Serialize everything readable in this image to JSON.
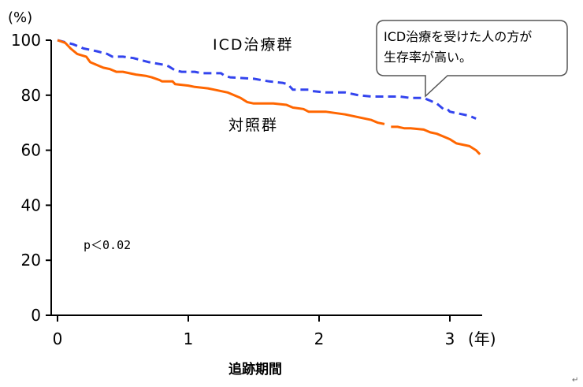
{
  "chart_data": {
    "type": "line",
    "title": "",
    "ylabel_unit": "(%)",
    "xlabel": "追跡期間",
    "x_unit": "(年)",
    "ylim": [
      0,
      100
    ],
    "xlim": [
      0,
      3.2
    ],
    "y_ticks": [
      0,
      20,
      40,
      60,
      80,
      100
    ],
    "x_ticks": [
      0,
      1,
      2,
      3
    ],
    "grid": false,
    "series": [
      {
        "name": "ICD治療群",
        "color": "#3344ee",
        "dash": "dashed",
        "points": [
          [
            0,
            100
          ],
          [
            0.12,
            98.5
          ],
          [
            0.2,
            97
          ],
          [
            0.3,
            96
          ],
          [
            0.38,
            95
          ],
          [
            0.42,
            94
          ],
          [
            0.5,
            94
          ],
          [
            0.58,
            93.5
          ],
          [
            0.62,
            93
          ],
          [
            0.7,
            92
          ],
          [
            0.82,
            91
          ],
          [
            0.85,
            90.5
          ],
          [
            0.9,
            89
          ],
          [
            0.95,
            88.5
          ],
          [
            1.05,
            88.5
          ],
          [
            1.1,
            88
          ],
          [
            1.25,
            88
          ],
          [
            1.28,
            87
          ],
          [
            1.32,
            86.5
          ],
          [
            1.5,
            86
          ],
          [
            1.62,
            85
          ],
          [
            1.72,
            84.5
          ],
          [
            1.76,
            84
          ],
          [
            1.8,
            82
          ],
          [
            1.92,
            82
          ],
          [
            1.95,
            81.5
          ],
          [
            2.05,
            81
          ],
          [
            2.2,
            81
          ],
          [
            2.3,
            80
          ],
          [
            2.4,
            79.5
          ],
          [
            2.5,
            79.5
          ],
          [
            2.62,
            79.5
          ],
          [
            2.7,
            79
          ],
          [
            2.8,
            79
          ],
          [
            2.85,
            78
          ],
          [
            2.9,
            77
          ],
          [
            2.95,
            75
          ],
          [
            2.98,
            75
          ],
          [
            3.0,
            74
          ],
          [
            3.05,
            73.5
          ],
          [
            3.1,
            73
          ],
          [
            3.15,
            72.5
          ],
          [
            3.2,
            71.5
          ]
        ]
      },
      {
        "name": "対照群",
        "color": "#ff6600",
        "dash": "solid",
        "points": [
          [
            0,
            100
          ],
          [
            0.06,
            99
          ],
          [
            0.1,
            97
          ],
          [
            0.15,
            95
          ],
          [
            0.22,
            94
          ],
          [
            0.25,
            92
          ],
          [
            0.3,
            91
          ],
          [
            0.35,
            90
          ],
          [
            0.4,
            89.5
          ],
          [
            0.45,
            88.5
          ],
          [
            0.5,
            88.5
          ],
          [
            0.55,
            88
          ],
          [
            0.6,
            87.5
          ],
          [
            0.68,
            87
          ],
          [
            0.72,
            86.5
          ],
          [
            0.78,
            85.5
          ],
          [
            0.8,
            85
          ],
          [
            0.88,
            85
          ],
          [
            0.9,
            84
          ],
          [
            1.0,
            83.5
          ],
          [
            1.05,
            83
          ],
          [
            1.15,
            82.5
          ],
          [
            1.2,
            82
          ],
          [
            1.3,
            81
          ],
          [
            1.35,
            80
          ],
          [
            1.4,
            79
          ],
          [
            1.45,
            77.5
          ],
          [
            1.5,
            77
          ],
          [
            1.65,
            77
          ],
          [
            1.75,
            76.5
          ],
          [
            1.8,
            75.5
          ],
          [
            1.88,
            75
          ],
          [
            1.92,
            74
          ],
          [
            2.05,
            74
          ],
          [
            2.2,
            73
          ],
          [
            2.3,
            72
          ],
          [
            2.4,
            71
          ],
          [
            2.45,
            70
          ],
          [
            2.5,
            69.5
          ]
        ]
      },
      {
        "name": "",
        "color": "#ff6600",
        "dash": "solid",
        "points": [
          [
            2.55,
            68.5
          ],
          [
            2.6,
            68.5
          ],
          [
            2.65,
            68
          ],
          [
            2.7,
            68
          ],
          [
            2.8,
            67.5
          ],
          [
            2.85,
            66.5
          ],
          [
            2.9,
            66
          ],
          [
            2.95,
            65
          ],
          [
            3.0,
            64
          ],
          [
            3.05,
            62.5
          ],
          [
            3.1,
            62
          ],
          [
            3.15,
            61.5
          ],
          [
            3.2,
            60
          ],
          [
            3.23,
            58.5
          ]
        ]
      }
    ],
    "annotations": {
      "pvalue": "p＜0.02",
      "callout_line1": "ICD治療を受けた人の方が",
      "callout_line2": "生存率が高い。",
      "para_mark": "↵"
    }
  }
}
